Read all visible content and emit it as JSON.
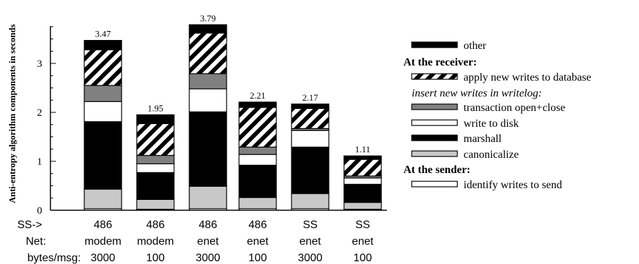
{
  "chart_data": {
    "type": "bar",
    "stacked": true,
    "ylabel": "Anti-entropy algorithm components in seconds",
    "ylim": [
      0,
      3.8
    ],
    "yticks": [
      0,
      1,
      2,
      3
    ],
    "row_labels": [
      "SS->",
      "Net:",
      "bytes/msg:"
    ],
    "categories": [
      {
        "ss": "486",
        "net": "modem",
        "bytes": "3000"
      },
      {
        "ss": "486",
        "net": "modem",
        "bytes": "100"
      },
      {
        "ss": "486",
        "net": "enet",
        "bytes": "3000"
      },
      {
        "ss": "486",
        "net": "enet",
        "bytes": "100"
      },
      {
        "ss": "SS",
        "net": "enet",
        "bytes": "3000"
      },
      {
        "ss": "SS",
        "net": "enet",
        "bytes": "100"
      }
    ],
    "totals": [
      "3.47",
      "1.95",
      "3.79",
      "2.21",
      "2.17",
      "1.11"
    ],
    "series": [
      {
        "name": "identify writes to send",
        "key": "identify",
        "fill": "#ffffff",
        "values": [
          0.03,
          0.02,
          0.03,
          0.03,
          0.03,
          0.02
        ]
      },
      {
        "name": "canonicalize",
        "key": "canonicalize",
        "fill": "#c8c8c8",
        "values": [
          0.4,
          0.2,
          0.46,
          0.23,
          0.31,
          0.14
        ]
      },
      {
        "name": "marshall",
        "key": "marshall",
        "fill": "#000000",
        "values": [
          1.38,
          0.55,
          1.52,
          0.66,
          0.95,
          0.37
        ]
      },
      {
        "name": "write to disk",
        "key": "write",
        "fill": "#ffffff",
        "values": [
          0.41,
          0.18,
          0.47,
          0.22,
          0.34,
          0.13
        ]
      },
      {
        "name": "transaction open+close",
        "key": "transaction",
        "fill": "#808080",
        "values": [
          0.33,
          0.17,
          0.31,
          0.15,
          0.04,
          0.04
        ]
      },
      {
        "name": "apply new writes to database",
        "key": "apply",
        "fill": "hatch",
        "values": [
          0.73,
          0.65,
          0.83,
          0.81,
          0.41,
          0.34
        ]
      },
      {
        "name": "other",
        "key": "other",
        "fill": "#000000",
        "values": [
          0.19,
          0.18,
          0.17,
          0.11,
          0.09,
          0.07
        ]
      }
    ],
    "legend": [
      {
        "kind": "item",
        "key": "other",
        "label": "other"
      },
      {
        "kind": "heading",
        "label": "At the receiver:"
      },
      {
        "kind": "item",
        "key": "apply",
        "label": "apply new writes to database"
      },
      {
        "kind": "italic",
        "label": "insert new writes in writelog:"
      },
      {
        "kind": "item",
        "key": "transaction",
        "label": "transaction open+close"
      },
      {
        "kind": "item",
        "key": "write",
        "label": "write to disk"
      },
      {
        "kind": "item",
        "key": "marshall",
        "label": "marshall"
      },
      {
        "kind": "item",
        "key": "canonicalize",
        "label": "canonicalize"
      },
      {
        "kind": "heading",
        "label": "At the sender:"
      },
      {
        "kind": "item",
        "key": "identify",
        "label": "identify writes to send"
      }
    ],
    "legend_position": "right",
    "grid": false
  }
}
